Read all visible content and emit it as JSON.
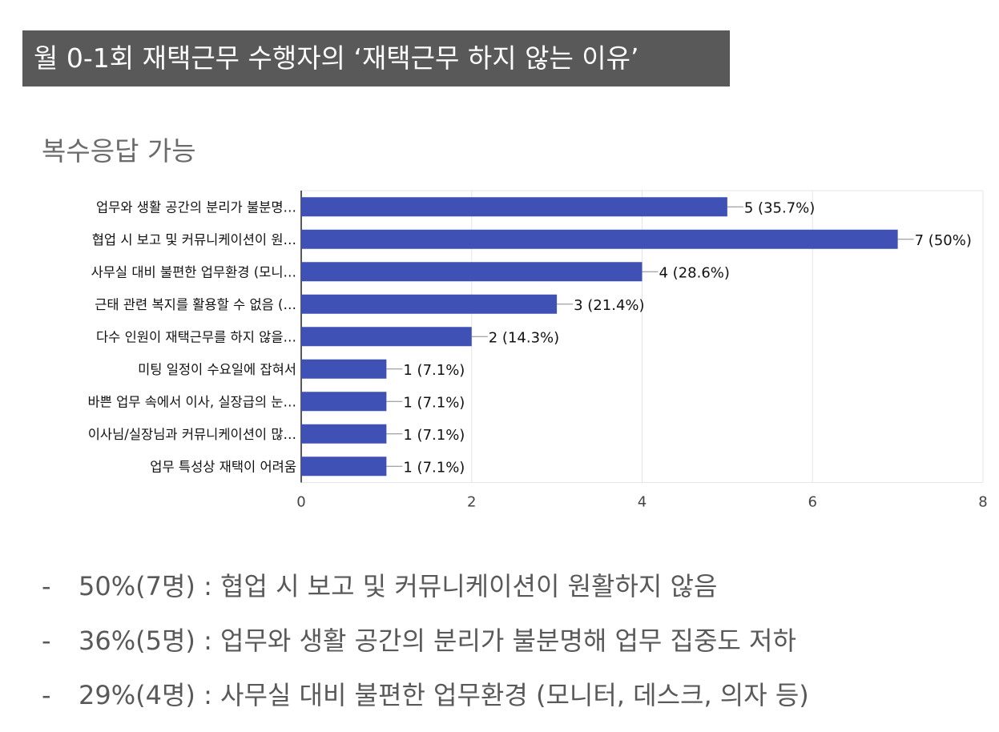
{
  "header": {
    "title": "월 0-1회 재택근무 수행자의 ‘재택근무 하지 않는 이유’",
    "subtitle": "복수응답 가능"
  },
  "chart_data": {
    "type": "bar",
    "orientation": "horizontal",
    "categories": [
      "업무와 생활 공간의 분리가 불분명…",
      "협업 시 보고 및 커뮤니케이션이 원…",
      "사무실 대비 불편한 업무환경 (모니…",
      "근태 관련 복지를 활용할 수 없음 (…",
      "다수 인원이 재택근무를 하지 않을…",
      "미팅 일정이 수요일에 잡혀서",
      "바쁜 업무 속에서 이사, 실장급의 눈…",
      "이사님/실장님과 커뮤니케이션이 많…",
      "업무 특성상 재택이 어려움"
    ],
    "values": [
      5,
      7,
      4,
      3,
      2,
      1,
      1,
      1,
      1
    ],
    "data_labels": [
      "5 (35.7%)",
      "7 (50%)",
      "4 (28.6%)",
      "3 (21.4%)",
      "2 (14.3%)",
      "1 (7.1%)",
      "1 (7.1%)",
      "1 (7.1%)",
      "1 (7.1%)"
    ],
    "xlim": [
      0,
      8
    ],
    "xticks": [
      0,
      2,
      4,
      6,
      8
    ],
    "grid": true,
    "bar_color": "#3f51b5"
  },
  "notes": [
    {
      "dash": "-",
      "text": "50%(7명) : 협업 시 보고 및 커뮤니케이션이 원활하지 않음"
    },
    {
      "dash": "-",
      "text": "36%(5명) : 업무와 생활 공간의 분리가 불분명해 업무 집중도 저하"
    },
    {
      "dash": "-",
      "text": "29%(4명) : 사무실 대비 불편한 업무환경 (모니터, 데스크, 의자 등)"
    }
  ]
}
